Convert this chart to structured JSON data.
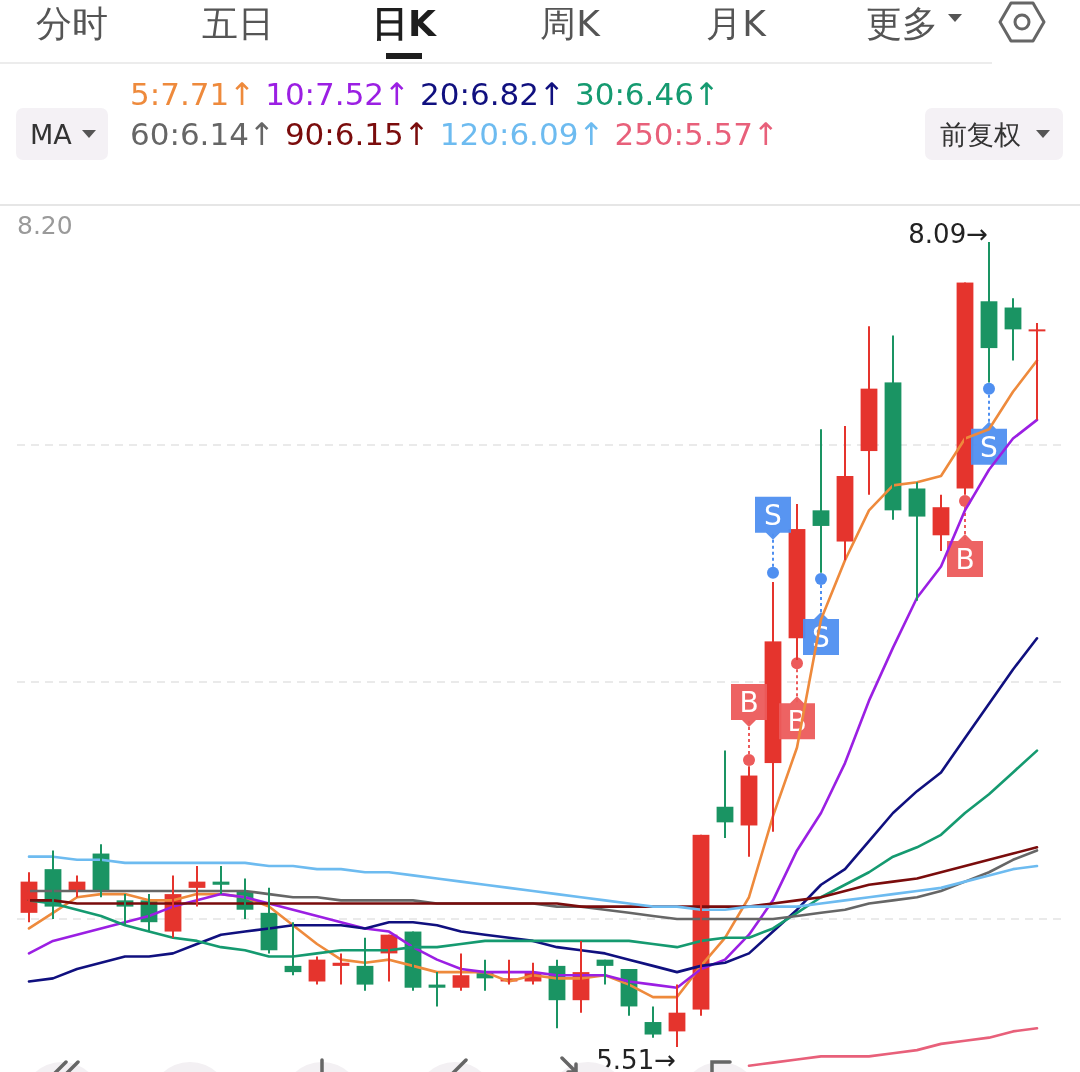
{
  "chart_data": {
    "type": "candlestick",
    "categories": [
      null,
      null,
      null,
      null,
      null,
      null,
      null,
      null,
      null,
      null,
      null,
      null,
      null,
      null,
      null,
      null,
      null,
      null,
      null,
      null,
      null,
      null,
      null,
      null,
      null,
      null,
      null,
      null,
      null,
      null,
      null,
      null,
      null,
      null,
      null,
      null,
      null,
      null,
      null,
      null,
      null,
      null,
      null
    ],
    "ohlc": [
      [
        5.94,
        6.07,
        5.91,
        6.04
      ],
      [
        6.08,
        6.14,
        5.92,
        5.96
      ],
      [
        6.01,
        6.06,
        5.99,
        6.04
      ],
      [
        6.13,
        6.16,
        5.99,
        6.01
      ],
      [
        5.98,
        6.0,
        5.9,
        5.96
      ],
      [
        5.98,
        6.0,
        5.88,
        5.91
      ],
      [
        5.88,
        6.06,
        5.86,
        6.0
      ],
      [
        6.02,
        6.09,
        5.96,
        6.04
      ],
      [
        6.04,
        6.09,
        6.0,
        6.03
      ],
      [
        6.01,
        6.05,
        5.92,
        5.95
      ],
      [
        5.94,
        6.02,
        5.81,
        5.82
      ],
      [
        5.77,
        5.91,
        5.74,
        5.75
      ],
      [
        5.72,
        5.8,
        5.71,
        5.79
      ],
      [
        5.77,
        5.81,
        5.71,
        5.78
      ],
      [
        5.77,
        5.86,
        5.69,
        5.71
      ],
      [
        5.81,
        5.87,
        5.72,
        5.87
      ],
      [
        5.88,
        5.88,
        5.69,
        5.7
      ],
      [
        5.71,
        5.75,
        5.64,
        5.7
      ],
      [
        5.7,
        5.81,
        5.69,
        5.74
      ],
      [
        5.75,
        5.79,
        5.69,
        5.73
      ],
      [
        5.72,
        5.79,
        5.71,
        5.73
      ],
      [
        5.72,
        5.78,
        5.71,
        5.75
      ],
      [
        5.77,
        5.79,
        5.57,
        5.66
      ],
      [
        5.66,
        5.85,
        5.62,
        5.75
      ],
      [
        5.79,
        5.79,
        5.71,
        5.77
      ],
      [
        5.76,
        5.76,
        5.61,
        5.64
      ],
      [
        5.59,
        5.64,
        5.54,
        5.55
      ],
      [
        5.56,
        5.71,
        5.51,
        5.62
      ],
      [
        5.63,
        6.19,
        5.61,
        6.19
      ],
      [
        6.28,
        6.46,
        6.18,
        6.23
      ],
      [
        6.22,
        6.41,
        6.12,
        6.38
      ],
      [
        6.42,
        7.0,
        6.2,
        6.81
      ],
      [
        6.82,
        7.25,
        6.75,
        7.17
      ],
      [
        7.23,
        7.49,
        7.03,
        7.18
      ],
      [
        7.13,
        7.5,
        7.07,
        7.34
      ],
      [
        7.42,
        7.82,
        7.28,
        7.62
      ],
      [
        7.64,
        7.79,
        7.2,
        7.23
      ],
      [
        7.3,
        7.32,
        6.94,
        7.21
      ],
      [
        7.15,
        7.28,
        7.1,
        7.24
      ],
      [
        7.3,
        7.96,
        7.28,
        7.96
      ],
      [
        7.9,
        8.09,
        7.64,
        7.75
      ],
      [
        7.88,
        7.91,
        7.71,
        7.81
      ],
      [
        7.81,
        7.83,
        7.52,
        7.81
      ]
    ],
    "colors": [
      "#e5342d",
      "#1a9463",
      "#e5342d",
      "#1a9463",
      "#1a9463",
      "#1a9463",
      "#e5342d",
      "#e5342d",
      "#1a9463",
      "#1a9463",
      "#1a9463",
      "#1a9463",
      "#e5342d",
      "#e5342d",
      "#1a9463",
      "#e5342d",
      "#1a9463",
      "#1a9463",
      "#e5342d",
      "#1a9463",
      "#e5342d",
      "#e5342d",
      "#1a9463",
      "#e5342d",
      "#1a9463",
      "#1a9463",
      "#1a9463",
      "#e5342d",
      "#e5342d",
      "#1a9463",
      "#e5342d",
      "#e5342d",
      "#e5342d",
      "#1a9463",
      "#e5342d",
      "#e5342d",
      "#1a9463",
      "#1a9463",
      "#e5342d",
      "#e5342d",
      "#1a9463",
      "#1a9463",
      "#e5342d"
    ],
    "series": [
      {
        "type": "line",
        "name": "5:7.71↑",
        "color": "#ee8a3c",
        "values": [
          5.89,
          5.94,
          5.99,
          6.0,
          6.0,
          5.98,
          5.98,
          6.0,
          6.0,
          5.99,
          5.96,
          5.9,
          5.84,
          5.79,
          5.78,
          5.79,
          5.77,
          5.75,
          5.75,
          5.75,
          5.72,
          5.74,
          5.73,
          5.73,
          5.74,
          5.71,
          5.67,
          5.67,
          5.77,
          5.86,
          5.99,
          6.25,
          6.47,
          6.88,
          7.07,
          7.23,
          7.31,
          7.32,
          7.34,
          7.46,
          7.49,
          7.61,
          7.71
        ]
      },
      {
        "type": "line",
        "name": "10:7.52↑",
        "color": "#9b1fe3",
        "values": [
          5.81,
          5.85,
          5.87,
          5.89,
          5.91,
          5.93,
          5.96,
          5.98,
          6.0,
          5.99,
          5.97,
          5.95,
          5.93,
          5.91,
          5.89,
          5.88,
          5.83,
          5.79,
          5.76,
          5.75,
          5.75,
          5.75,
          5.74,
          5.74,
          5.74,
          5.72,
          5.71,
          5.7,
          5.76,
          5.79,
          5.87,
          5.98,
          6.14,
          6.26,
          6.42,
          6.62,
          6.79,
          6.95,
          7.05,
          7.23,
          7.36,
          7.46,
          7.52
        ]
      },
      {
        "type": "line",
        "name": "20:6.82↑",
        "color": "#10107f",
        "values": [
          5.72,
          5.73,
          5.76,
          5.78,
          5.8,
          5.8,
          5.81,
          5.84,
          5.87,
          5.88,
          5.89,
          5.9,
          5.9,
          5.9,
          5.89,
          5.91,
          5.91,
          5.9,
          5.88,
          5.87,
          5.86,
          5.85,
          5.83,
          5.82,
          5.81,
          5.79,
          5.77,
          5.75,
          5.77,
          5.78,
          5.81,
          5.88,
          5.95,
          6.03,
          6.08,
          6.17,
          6.26,
          6.33,
          6.39,
          6.5,
          6.61,
          6.72,
          6.82
        ]
      },
      {
        "type": "line",
        "name": "30:6.46↑",
        "color": "#159a70",
        "values": [
          5.98,
          5.97,
          5.95,
          5.93,
          5.9,
          5.88,
          5.86,
          5.85,
          5.83,
          5.82,
          5.8,
          5.8,
          5.81,
          5.82,
          5.82,
          5.82,
          5.83,
          5.83,
          5.84,
          5.85,
          5.85,
          5.85,
          5.85,
          5.85,
          5.85,
          5.85,
          5.84,
          5.83,
          5.85,
          5.86,
          5.86,
          5.89,
          5.94,
          5.99,
          6.03,
          6.07,
          6.12,
          6.15,
          6.19,
          6.26,
          6.32,
          6.39,
          6.46
        ]
      },
      {
        "type": "line",
        "name": "60:6.14↑",
        "color": "#666666",
        "values": [
          6.01,
          6.01,
          6.01,
          6.01,
          6.01,
          6.01,
          6.01,
          6.01,
          6.01,
          6.01,
          6.0,
          5.99,
          5.99,
          5.98,
          5.98,
          5.98,
          5.98,
          5.97,
          5.97,
          5.97,
          5.97,
          5.97,
          5.96,
          5.96,
          5.95,
          5.94,
          5.93,
          5.92,
          5.92,
          5.92,
          5.92,
          5.92,
          5.93,
          5.94,
          5.95,
          5.97,
          5.98,
          5.99,
          6.01,
          6.04,
          6.07,
          6.11,
          6.14
        ]
      },
      {
        "type": "line",
        "name": "90:6.15↑",
        "color": "#7a0c0c",
        "values": [
          5.98,
          5.98,
          5.97,
          5.97,
          5.97,
          5.97,
          5.97,
          5.97,
          5.97,
          5.97,
          5.97,
          5.97,
          5.97,
          5.97,
          5.97,
          5.97,
          5.97,
          5.97,
          5.97,
          5.97,
          5.97,
          5.97,
          5.97,
          5.96,
          5.96,
          5.96,
          5.96,
          5.96,
          5.96,
          5.96,
          5.96,
          5.97,
          5.98,
          5.99,
          6.01,
          6.03,
          6.04,
          6.05,
          6.07,
          6.09,
          6.11,
          6.13,
          6.15
        ]
      },
      {
        "type": "line",
        "name": "120:6.09↑",
        "color": "#6dbbf0",
        "values": [
          6.12,
          6.12,
          6.11,
          6.11,
          6.1,
          6.1,
          6.1,
          6.1,
          6.1,
          6.1,
          6.09,
          6.09,
          6.08,
          6.08,
          6.07,
          6.07,
          6.06,
          6.05,
          6.04,
          6.03,
          6.02,
          6.01,
          6.0,
          5.99,
          5.98,
          5.97,
          5.96,
          5.96,
          5.95,
          5.95,
          5.96,
          5.96,
          5.96,
          5.97,
          5.98,
          5.99,
          6.0,
          6.01,
          6.02,
          6.04,
          6.06,
          6.08,
          6.09
        ]
      },
      {
        "type": "line",
        "name": "250:5.57↑",
        "color": "#e8607a",
        "values": [
          null,
          null,
          null,
          null,
          null,
          null,
          null,
          null,
          null,
          null,
          null,
          null,
          null,
          null,
          null,
          null,
          null,
          null,
          null,
          null,
          null,
          null,
          null,
          null,
          null,
          null,
          null,
          null,
          null,
          null,
          5.45,
          5.46,
          5.47,
          5.48,
          5.48,
          5.48,
          5.49,
          5.5,
          5.52,
          5.53,
          5.54,
          5.56,
          5.57
        ]
      },
      {
        "type": "scatter",
        "name": "B",
        "color": "#ec5b5b",
        "values": [
          null,
          null,
          null,
          null,
          null,
          null,
          null,
          null,
          null,
          null,
          null,
          null,
          null,
          null,
          null,
          null,
          null,
          null,
          null,
          null,
          null,
          null,
          null,
          null,
          null,
          null,
          null,
          null,
          null,
          null,
          6.43,
          null,
          6.74,
          null,
          null,
          null,
          null,
          null,
          null,
          7.26,
          null,
          null,
          null
        ]
      },
      {
        "type": "scatter",
        "name": "S",
        "color": "#4f8ff0",
        "values": [
          null,
          null,
          null,
          null,
          null,
          null,
          null,
          null,
          null,
          null,
          null,
          null,
          null,
          null,
          null,
          null,
          null,
          null,
          null,
          null,
          null,
          null,
          null,
          null,
          null,
          null,
          null,
          null,
          null,
          null,
          null,
          7.03,
          null,
          7.01,
          null,
          null,
          null,
          null,
          null,
          null,
          7.62,
          null,
          null
        ]
      }
    ],
    "grid": "y",
    "legend": "top",
    "annotations": [
      "分时",
      "五日",
      "日K",
      "周K",
      "月K",
      "更多",
      "MA",
      "前复权",
      "8.20",
      "8.09→",
      "5.51→"
    ]
  }
}
